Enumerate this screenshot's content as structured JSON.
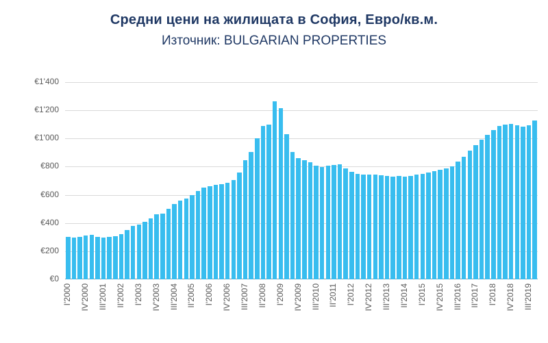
{
  "chart_data": {
    "type": "bar",
    "title": "Средни цени на жилищата в София, Евро/кв.м.",
    "subtitle": "Източник: BULGARIAN PROPERTIES",
    "xlabel": "",
    "ylabel": "",
    "ylim": [
      0,
      1400
    ],
    "grid": true,
    "legend": false,
    "bar_color": "#38BDEF",
    "title_color": "#1F3864",
    "axis_text_color": "#595959",
    "gridline_color": "#D9D9D9",
    "y_ticks": [
      "€0",
      "€200",
      "€400",
      "€600",
      "€800",
      "€1'000",
      "€1'200",
      "€1'400"
    ],
    "x_label_every": 3,
    "x_tick_labels": [
      "I'2000",
      "IV'2000",
      "III'2001",
      "II'2002",
      "I'2003",
      "IV'2003",
      "III'2004",
      "II'2005",
      "I'2006",
      "IV'2006",
      "III'2007",
      "II'2008",
      "I'2009",
      "IV'2009",
      "III'2010",
      "II'2011",
      "I'2012",
      "IV'2012",
      "III'2013",
      "II'2014",
      "I'2015",
      "IV'2015",
      "III'2016",
      "II'2017",
      "I'2018",
      "IV'2018",
      "III'2019"
    ],
    "categories": [
      "I'2000",
      "II'2000",
      "III'2000",
      "IV'2000",
      "I'2001",
      "II'2001",
      "III'2001",
      "IV'2001",
      "I'2002",
      "II'2002",
      "III'2002",
      "IV'2002",
      "I'2003",
      "II'2003",
      "III'2003",
      "IV'2003",
      "I'2004",
      "II'2004",
      "III'2004",
      "IV'2004",
      "I'2005",
      "II'2005",
      "III'2005",
      "IV'2005",
      "I'2006",
      "II'2006",
      "III'2006",
      "IV'2006",
      "I'2007",
      "II'2007",
      "III'2007",
      "IV'2007",
      "I'2008",
      "II'2008",
      "III'2008",
      "IV'2008",
      "I'2009",
      "II'2009",
      "III'2009",
      "IV'2009",
      "I'2010",
      "II'2010",
      "III'2010",
      "IV'2010",
      "I'2011",
      "II'2011",
      "III'2011",
      "IV'2011",
      "I'2012",
      "II'2012",
      "III'2012",
      "IV'2012",
      "I'2013",
      "II'2013",
      "III'2013",
      "IV'2013",
      "I'2014",
      "II'2014",
      "III'2014",
      "IV'2014",
      "I'2015",
      "II'2015",
      "III'2015",
      "IV'2015",
      "I'2016",
      "II'2016",
      "III'2016",
      "IV'2016",
      "I'2017",
      "II'2017",
      "III'2017",
      "IV'2017",
      "I'2018",
      "II'2018",
      "III'2018",
      "IV'2018",
      "I'2019",
      "II'2019",
      "III'2019",
      "IV'2019"
    ],
    "values": [
      300,
      295,
      300,
      310,
      315,
      300,
      295,
      300,
      305,
      320,
      350,
      380,
      390,
      410,
      435,
      460,
      465,
      500,
      535,
      560,
      575,
      600,
      625,
      650,
      660,
      670,
      675,
      685,
      705,
      760,
      845,
      905,
      1000,
      1090,
      1100,
      1266,
      1215,
      1030,
      905,
      860,
      845,
      830,
      805,
      795,
      805,
      812,
      815,
      790,
      762,
      750,
      745,
      743,
      742,
      737,
      733,
      729,
      732,
      730,
      736,
      742,
      748,
      756,
      766,
      776,
      788,
      802,
      836,
      872,
      912,
      952,
      992,
      1028,
      1062,
      1088,
      1098,
      1103,
      1093,
      1085,
      1092,
      1128
    ]
  }
}
